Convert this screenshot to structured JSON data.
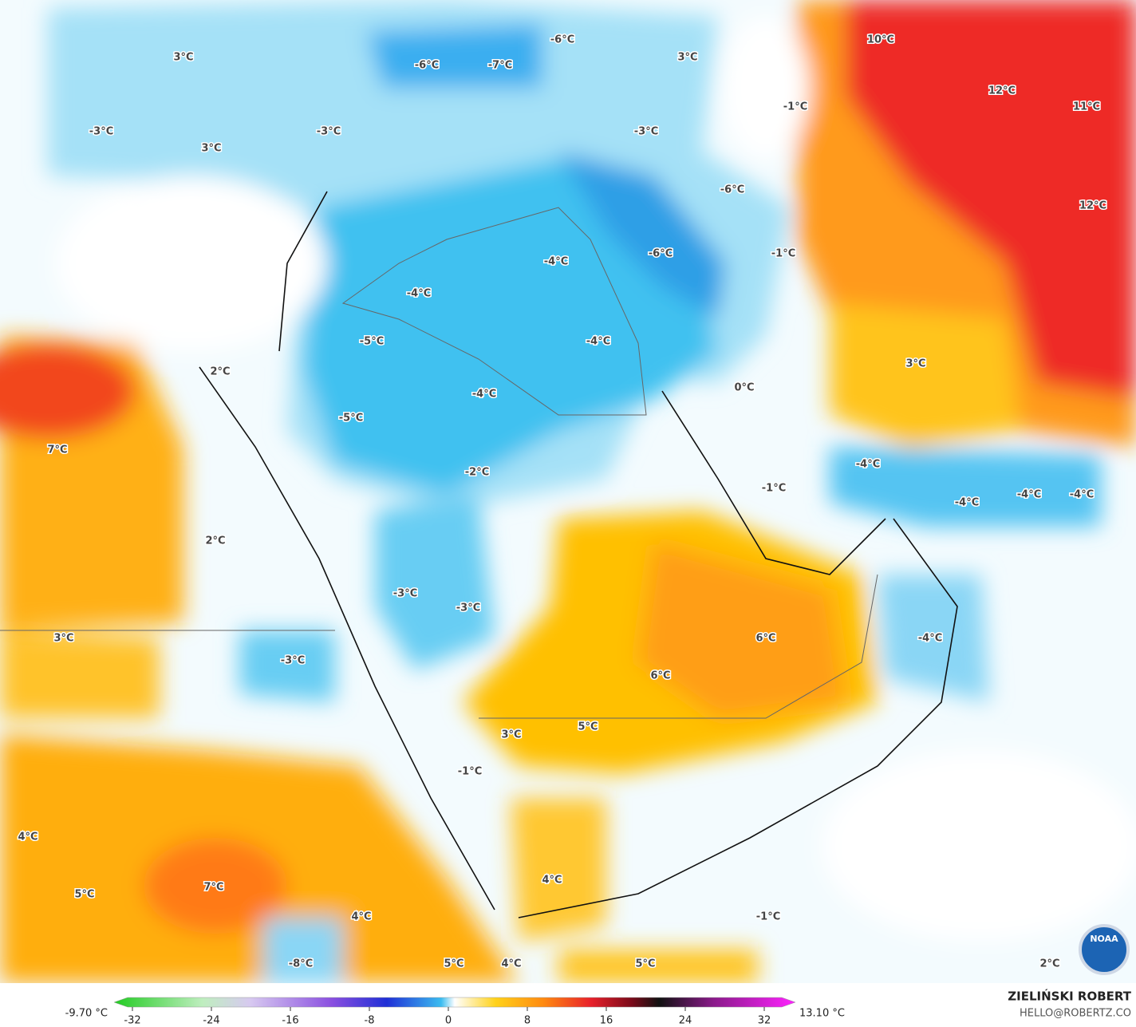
{
  "map": {
    "labels": [
      "3°C",
      "-6°C",
      "-6°C",
      "-7°C",
      "3°C",
      "10°C",
      "12°C",
      "11°C",
      "-1°C",
      "-3°C",
      "-3°C",
      "-3°C",
      "3°C",
      "-6°C",
      "12°C",
      "-6°C",
      "-1°C",
      "-4°C",
      "-4°C",
      "-5°C",
      "-4°C",
      "3°C",
      "2°C",
      "0°C",
      "-4°C",
      "-5°C",
      "7°C",
      "-4°C",
      "-2°C",
      "-1°C",
      "-4°C",
      "-4°C",
      "-4°C",
      "2°C",
      "-3°C",
      "-3°C",
      "3°C",
      "6°C",
      "-4°C",
      "-3°C",
      "6°C",
      "5°C",
      "3°C",
      "-1°C",
      "4°C",
      "7°C",
      "5°C",
      "4°C",
      "4°C",
      "-1°C",
      "-8°C",
      "5°C",
      "4°C",
      "5°C",
      "2°C"
    ],
    "logo": "NOAA"
  },
  "colorbar": {
    "min_label": "-9.70 °C",
    "max_label": "13.10 °C",
    "lim": [
      -32,
      32
    ],
    "ticks": [
      -32,
      -24,
      -16,
      -8,
      0,
      8,
      16,
      24,
      32
    ]
  },
  "credit": {
    "author": "ZIELIŃSKI ROBERT",
    "email": "HELLO@ROBERTZ.CO"
  }
}
